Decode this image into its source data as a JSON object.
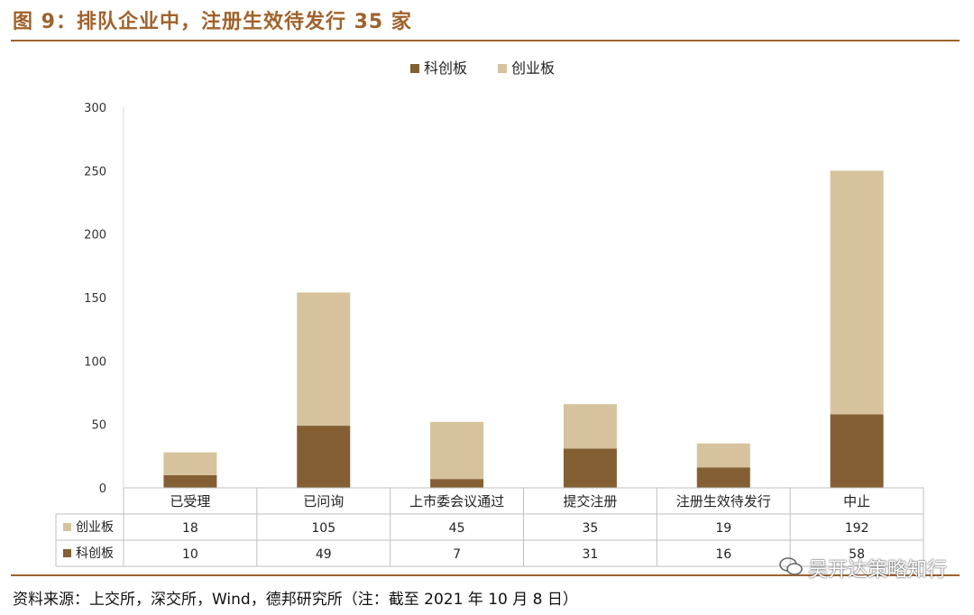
{
  "title": "图 9：排队企业中，注册生效待发行 35 家",
  "source": "资料来源：上交所，深交所，Wind，德邦研究所（注：截至 2021 年 10 月 8 日）",
  "watermark": "吴开达策略知行",
  "colors": {
    "accent": "#a0622c",
    "kechuang": "#835f33",
    "chuangye": "#d6c39d"
  },
  "chart_data": {
    "type": "bar",
    "stacked": true,
    "categories": [
      "已受理",
      "已问询",
      "上市委会议通过",
      "提交注册",
      "注册生效待发行",
      "中止"
    ],
    "series": [
      {
        "name": "科创板",
        "values": [
          10,
          49,
          7,
          31,
          16,
          58
        ],
        "color": "#835f33"
      },
      {
        "name": "创业板",
        "values": [
          18,
          105,
          45,
          35,
          19,
          192
        ],
        "color": "#d6c39d"
      }
    ],
    "table_rows": [
      {
        "name": "创业板",
        "values": [
          "18",
          "105",
          "45",
          "35",
          "19",
          "192"
        ],
        "color": "#d6c39d"
      },
      {
        "name": "科创板",
        "values": [
          "10",
          "49",
          "7",
          "31",
          "16",
          "58"
        ],
        "color": "#835f33"
      }
    ],
    "ylim": [
      0,
      300
    ],
    "yticks": [
      "0",
      "50",
      "100",
      "150",
      "200",
      "250",
      "300"
    ],
    "legend_position": "top-center",
    "grid": false
  }
}
